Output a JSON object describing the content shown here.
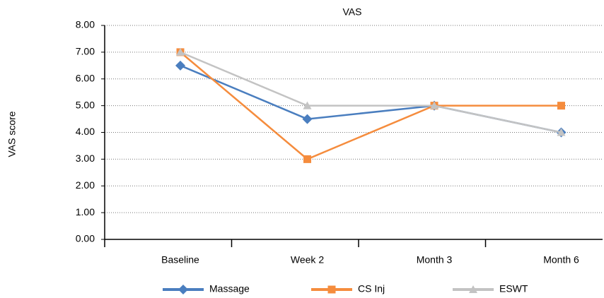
{
  "chart_data": {
    "type": "line",
    "title": "VAS",
    "y_label": "VAS score",
    "categories": [
      "Baseline",
      "Week 2",
      "Month 3",
      "Month 6"
    ],
    "series": [
      {
        "name": "Massage",
        "color": "#4a7ebf",
        "marker": "diamond",
        "values": [
          6.5,
          4.5,
          5,
          4
        ]
      },
      {
        "name": "CS Inj",
        "color": "#f58c3d",
        "marker": "square",
        "values": [
          7,
          3,
          5,
          5
        ]
      },
      {
        "name": "ESWT",
        "color": "#c3c3c3",
        "marker": "triangle",
        "values": [
          7,
          5,
          5,
          4
        ]
      }
    ],
    "ylim": [
      0,
      8
    ],
    "yticks": [
      {
        "value": 0,
        "label": "0.00"
      },
      {
        "value": 1,
        "label": "1.00"
      },
      {
        "value": 2,
        "label": "2.00"
      },
      {
        "value": 3,
        "label": "3.00"
      },
      {
        "value": 4,
        "label": "4.00"
      },
      {
        "value": 5,
        "label": "5.00"
      },
      {
        "value": 6,
        "label": "6.00"
      },
      {
        "value": 7,
        "label": "7.00"
      },
      {
        "value": 8,
        "label": "8.00"
      }
    ],
    "grid": true,
    "legend": "bottom"
  }
}
